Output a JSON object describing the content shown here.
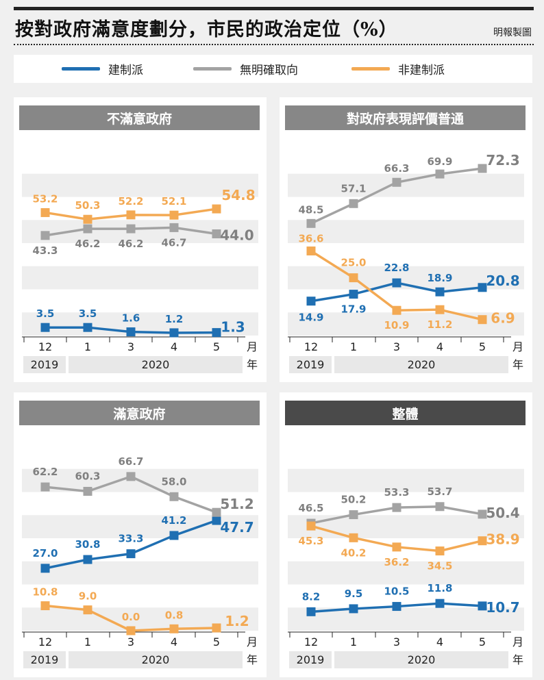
{
  "header": {
    "title": "按對政府滿意度劃分，市民的政治定位（%）",
    "credit": "明報製圖"
  },
  "legend": [
    {
      "label": "建制派",
      "color": "#1f6fb2"
    },
    {
      "label": "無明確取向",
      "color": "#a3a3a3"
    },
    {
      "label": "非建制派",
      "color": "#f3a953"
    }
  ],
  "x_axis": {
    "ticks": [
      "12",
      "1",
      "3",
      "4",
      "5"
    ],
    "month_unit": "月",
    "year_unit": "年",
    "year_2019": "2019",
    "year_2020": "2020"
  },
  "chart_data": [
    {
      "type": "line",
      "title": "不滿意政府",
      "categories": [
        "12",
        "1",
        "3",
        "4",
        "5"
      ],
      "ylim": [
        0,
        80
      ],
      "series": [
        {
          "name": "建制派",
          "values": [
            3.5,
            3.5,
            1.6,
            1.2,
            1.3
          ]
        },
        {
          "name": "無明確取向",
          "values": [
            43.3,
            46.2,
            46.2,
            46.7,
            44.0
          ]
        },
        {
          "name": "非建制派",
          "values": [
            53.2,
            50.3,
            52.2,
            52.1,
            54.8
          ]
        }
      ],
      "labels": {
        "建制派": [
          "3.5",
          "3.5",
          "1.6",
          "1.2",
          "1.3"
        ],
        "無明確取向": [
          "43.3",
          "46.2",
          "46.2",
          "46.7",
          "44.0"
        ],
        "非建制派": [
          "53.2",
          "50.3",
          "52.2",
          "52.1",
          "54.8"
        ]
      }
    },
    {
      "type": "line",
      "title": "對政府表現評價普通",
      "categories": [
        "12",
        "1",
        "3",
        "4",
        "5"
      ],
      "ylim": [
        0,
        80
      ],
      "series": [
        {
          "name": "建制派",
          "values": [
            14.9,
            17.9,
            22.8,
            18.9,
            20.8
          ]
        },
        {
          "name": "無明確取向",
          "values": [
            48.5,
            57.1,
            66.3,
            69.9,
            72.3
          ]
        },
        {
          "name": "非建制派",
          "values": [
            36.6,
            25.0,
            10.9,
            11.2,
            6.9
          ]
        }
      ],
      "labels": {
        "建制派": [
          "14.9",
          "17.9",
          "22.8",
          "18.9",
          "20.8"
        ],
        "無明確取向": [
          "48.5",
          "57.1",
          "66.3",
          "69.9",
          "72.3"
        ],
        "非建制派": [
          "36.6",
          "25.0",
          "10.9",
          "11.2",
          "6.9"
        ]
      }
    },
    {
      "type": "line",
      "title": "滿意政府",
      "categories": [
        "12",
        "1",
        "3",
        "4",
        "5"
      ],
      "ylim": [
        0,
        80
      ],
      "series": [
        {
          "name": "建制派",
          "values": [
            27.0,
            30.8,
            33.3,
            41.2,
            47.7
          ]
        },
        {
          "name": "無明確取向",
          "values": [
            62.2,
            60.3,
            66.7,
            58.0,
            51.2
          ]
        },
        {
          "name": "非建制派",
          "values": [
            10.8,
            9.0,
            0.0,
            0.8,
            1.2
          ]
        }
      ],
      "labels": {
        "建制派": [
          "27.0",
          "30.8",
          "33.3",
          "41.2",
          "47.7"
        ],
        "無明確取向": [
          "62.2",
          "60.3",
          "66.7",
          "58.0",
          "51.2"
        ],
        "非建制派": [
          "10.8",
          "9.0",
          "0.0",
          "0.8",
          "1.2"
        ]
      }
    },
    {
      "type": "line",
      "title": "整體",
      "categories": [
        "12",
        "1",
        "3",
        "4",
        "5"
      ],
      "ylim": [
        0,
        80
      ],
      "series": [
        {
          "name": "建制派",
          "values": [
            8.2,
            9.5,
            10.5,
            11.8,
            10.7
          ]
        },
        {
          "name": "無明確取向",
          "values": [
            46.5,
            50.2,
            53.3,
            53.7,
            50.4
          ]
        },
        {
          "name": "非建制派",
          "values": [
            45.3,
            40.2,
            36.2,
            34.5,
            38.9
          ]
        }
      ],
      "labels": {
        "建制派": [
          "8.2",
          "9.5",
          "10.5",
          "11.8",
          "10.7"
        ],
        "無明確取向": [
          "46.5",
          "50.2",
          "53.3",
          "53.7",
          "50.4"
        ],
        "非建制派": [
          "45.3",
          "40.2",
          "36.2",
          "34.5",
          "38.9"
        ]
      }
    }
  ]
}
